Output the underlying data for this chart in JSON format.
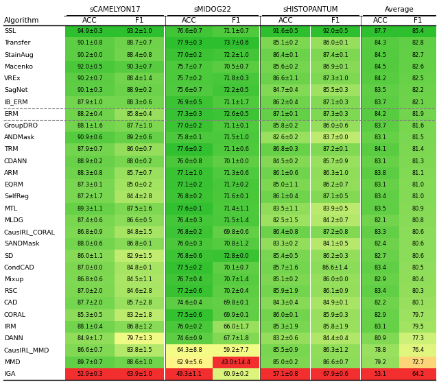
{
  "algorithms": [
    "SSL",
    "Transfer",
    "StainAug",
    "Macenko",
    "VREx",
    "SagNet",
    "IB_ERM",
    "ERM",
    "GroupDRO",
    "ANDMask",
    "TRM",
    "CDANN",
    "ARM",
    "EQRM",
    "SelfReg",
    "MTL",
    "MLDG",
    "CausIRL_CORAL",
    "SANDMask",
    "SD",
    "CondCAD",
    "Mixup",
    "RSC",
    "CAD",
    "CORAL",
    "IRM",
    "DANN",
    "CausIRL_MMD",
    "MMD",
    "IGA"
  ],
  "col_groups": [
    "sCAMELYON17",
    "sMIDOG22",
    "sHISTOPANTUM",
    "Average"
  ],
  "data": [
    [
      "94.9±0.3",
      "93.2±1.0",
      "76.6±0.7",
      "71.1±0.7",
      "91.6±0.5",
      "92.0±0.5",
      "87.7",
      "85.4"
    ],
    [
      "90.1±0.8",
      "88.7±0.7",
      "77.9±0.3",
      "73.7±0.6",
      "85.1±0.2",
      "86.0±0.1",
      "84.3",
      "82.8"
    ],
    [
      "90.2±0.0",
      "88.4±0.8",
      "77.0±0.2",
      "72.2±1.0",
      "86.4±0.1",
      "87.4±0.1",
      "84.5",
      "82.7"
    ],
    [
      "92.0±0.5",
      "90.3±0.7",
      "75.7±0.7",
      "70.5±0.7",
      "85.6±0.2",
      "86.9±0.1",
      "84.5",
      "82.6"
    ],
    [
      "90.2±0.7",
      "88.4±1.4",
      "75.7±0.2",
      "71.8±0.3",
      "86.6±1.1",
      "87.3±1.0",
      "84.2",
      "82.5"
    ],
    [
      "90.1±0.3",
      "88.9±0.2",
      "75.6±0.7",
      "72.2±0.5",
      "84.7±0.4",
      "85.5±0.3",
      "83.5",
      "82.2"
    ],
    [
      "87.9±1.0",
      "88.3±0.6",
      "76.9±0.5",
      "71.1±1.7",
      "86.2±0.4",
      "87.1±0.3",
      "83.7",
      "82.1"
    ],
    [
      "88.2±0.4",
      "85.8±0.4",
      "77.3±0.3",
      "72.6±0.5",
      "87.1±0.1",
      "87.3±0.3",
      "84.2",
      "81.9"
    ],
    [
      "88.1±1.6",
      "87.7±1.0",
      "77.0±0.2",
      "71.1±0.1",
      "85.8±0.2",
      "86.0±0.6",
      "83.7",
      "81.6"
    ],
    [
      "90.9±0.6",
      "89.2±0.6",
      "75.8±0.1",
      "71.5±1.0",
      "82.6±0.2",
      "83.7±0.0",
      "83.1",
      "81.5"
    ],
    [
      "87.9±0.7",
      "86.0±0.7",
      "77.6±0.2",
      "71.1±0.6",
      "86.8±0.3",
      "87.2±0.1",
      "84.1",
      "81.4"
    ],
    [
      "88.9±0.2",
      "88.0±0.2",
      "76.0±0.8",
      "70.1±0.0",
      "84.5±0.2",
      "85.7±0.9",
      "83.1",
      "81.3"
    ],
    [
      "88.3±0.8",
      "85.7±0.7",
      "77.1±1.0",
      "71.3±0.6",
      "86.1±0.6",
      "86.3±1.0",
      "83.8",
      "81.1"
    ],
    [
      "87.3±0.1",
      "85.0±0.2",
      "77.1±0.2",
      "71.7±0.2",
      "85.0±1.1",
      "86.2±0.7",
      "83.1",
      "81.0"
    ],
    [
      "87.2±1.7",
      "84.4±2.8",
      "76.8±0.2",
      "71.6±0.1",
      "86.1±0.4",
      "87.1±0.5",
      "83.4",
      "81.0"
    ],
    [
      "89.3±1.1",
      "87.5±1.6",
      "77.6±0.1",
      "71.4±1.1",
      "83.5±1.1",
      "83.9±0.5",
      "83.5",
      "80.9"
    ],
    [
      "87.4±0.6",
      "86.6±0.5",
      "76.4±0.3",
      "71.5±1.4",
      "82.5±1.5",
      "84.2±0.7",
      "82.1",
      "80.8"
    ],
    [
      "86.8±0.9",
      "84.8±1.5",
      "76.8±0.2",
      "69.8±0.6",
      "86.4±0.8",
      "87.2±0.8",
      "83.3",
      "80.6"
    ],
    [
      "88.0±0.6",
      "86.8±0.1",
      "76.0±0.3",
      "70.8±1.2",
      "83.3±0.2",
      "84.1±0.5",
      "82.4",
      "80.6"
    ],
    [
      "86.0±1.1",
      "82.9±1.5",
      "76.8±0.6",
      "72.8±0.0",
      "85.4±0.5",
      "86.2±0.3",
      "82.7",
      "80.6"
    ],
    [
      "87.0±0.0",
      "84.8±0.1",
      "77.5±0.2",
      "70.1±0.7",
      "85.7±1.6",
      "86.6±1.4",
      "83.4",
      "80.5"
    ],
    [
      "86.8±0.6",
      "84.5±1.1",
      "76.7±0.4",
      "70.7±1.4",
      "85.1±0.2",
      "86.0±0.0",
      "82.9",
      "80.4"
    ],
    [
      "87.0±2.0",
      "84.6±2.8",
      "77.2±0.6",
      "70.2±0.4",
      "85.9±1.9",
      "86.1±0.9",
      "83.4",
      "80.3"
    ],
    [
      "87.7±2.0",
      "85.7±2.8",
      "74.6±0.4",
      "69.8±0.1",
      "84.3±0.4",
      "84.9±0.1",
      "82.2",
      "80.1"
    ],
    [
      "85.3±0.5",
      "83.2±1.8",
      "77.5±0.6",
      "69.9±0.1",
      "86.0±0.1",
      "85.9±0.3",
      "82.9",
      "79.7"
    ],
    [
      "88.1±0.4",
      "86.8±1.2",
      "76.0±0.2",
      "66.0±1.7",
      "85.3±1.9",
      "85.8±1.9",
      "83.1",
      "79.5"
    ],
    [
      "84.9±1.7",
      "79.7±1.3",
      "74.6±0.9",
      "67.7±1.8",
      "83.2±0.6",
      "84.4±0.4",
      "80.9",
      "77.3"
    ],
    [
      "86.6±0.7",
      "83.8±1.5",
      "64.3±8.8",
      "59.2±7.7",
      "85.5±0.9",
      "86.3±1.2",
      "78.8",
      "76.4"
    ],
    [
      "89.7±0.7",
      "88.6±1.0",
      "62.9±5.6",
      "43.0±14.4",
      "85.0±0.2",
      "86.6±0.7",
      "79.2",
      "72.7"
    ],
    [
      "52.9±0.3",
      "63.9±1.0",
      "49.3±1.1",
      "60.9±0.2",
      "57.1±0.8",
      "67.9±0.6",
      "53.1",
      "64.2"
    ]
  ],
  "values": [
    [
      94.9,
      93.2,
      76.6,
      71.1,
      91.6,
      92.0,
      87.7,
      85.4
    ],
    [
      90.1,
      88.7,
      77.9,
      73.7,
      85.1,
      86.0,
      84.3,
      82.8
    ],
    [
      90.2,
      88.4,
      77.0,
      72.2,
      86.4,
      87.4,
      84.5,
      82.7
    ],
    [
      92.0,
      90.3,
      75.7,
      70.5,
      85.6,
      86.9,
      84.5,
      82.6
    ],
    [
      90.2,
      88.4,
      75.7,
      71.8,
      86.6,
      87.3,
      84.2,
      82.5
    ],
    [
      90.1,
      88.9,
      75.6,
      72.2,
      84.7,
      85.5,
      83.5,
      82.2
    ],
    [
      87.9,
      88.3,
      76.9,
      71.1,
      86.2,
      87.1,
      83.7,
      82.1
    ],
    [
      88.2,
      85.8,
      77.3,
      72.6,
      87.1,
      87.3,
      84.2,
      81.9
    ],
    [
      88.1,
      87.7,
      77.0,
      71.1,
      85.8,
      86.0,
      83.7,
      81.6
    ],
    [
      90.9,
      89.2,
      75.8,
      71.5,
      82.6,
      83.7,
      83.1,
      81.5
    ],
    [
      87.9,
      86.0,
      77.6,
      71.1,
      86.8,
      87.2,
      84.1,
      81.4
    ],
    [
      88.9,
      88.0,
      76.0,
      70.1,
      84.5,
      85.7,
      83.1,
      81.3
    ],
    [
      88.3,
      85.7,
      77.1,
      71.3,
      86.1,
      86.3,
      83.8,
      81.1
    ],
    [
      87.3,
      85.0,
      77.1,
      71.7,
      85.0,
      86.2,
      83.1,
      81.0
    ],
    [
      87.2,
      84.4,
      76.8,
      71.6,
      86.1,
      87.1,
      83.4,
      81.0
    ],
    [
      89.3,
      87.5,
      77.6,
      71.4,
      83.5,
      83.9,
      83.5,
      80.9
    ],
    [
      87.4,
      86.6,
      76.4,
      71.5,
      82.5,
      84.2,
      82.1,
      80.8
    ],
    [
      86.8,
      84.8,
      76.8,
      69.8,
      86.4,
      87.2,
      83.3,
      80.6
    ],
    [
      88.0,
      86.8,
      76.0,
      70.8,
      83.3,
      84.1,
      82.4,
      80.6
    ],
    [
      86.0,
      82.9,
      76.8,
      72.8,
      85.4,
      86.2,
      82.7,
      80.6
    ],
    [
      87.0,
      84.8,
      77.5,
      70.1,
      85.7,
      86.6,
      83.4,
      80.5
    ],
    [
      86.8,
      84.5,
      76.7,
      70.7,
      85.1,
      86.0,
      82.9,
      80.4
    ],
    [
      87.0,
      84.6,
      77.2,
      70.2,
      85.9,
      86.1,
      83.4,
      80.3
    ],
    [
      87.7,
      85.7,
      74.6,
      69.8,
      84.3,
      84.9,
      82.2,
      80.1
    ],
    [
      85.3,
      83.2,
      77.5,
      69.9,
      86.0,
      85.9,
      82.9,
      79.7
    ],
    [
      88.1,
      86.8,
      76.0,
      66.0,
      85.3,
      85.8,
      83.1,
      79.5
    ],
    [
      84.9,
      79.7,
      74.6,
      67.7,
      83.2,
      84.4,
      80.9,
      77.3
    ],
    [
      86.6,
      83.8,
      64.3,
      59.2,
      85.5,
      86.3,
      78.8,
      76.4
    ],
    [
      89.7,
      88.6,
      62.9,
      43.0,
      85.0,
      86.6,
      79.2,
      72.7
    ],
    [
      52.9,
      63.9,
      49.3,
      60.9,
      57.1,
      67.9,
      53.1,
      64.2
    ]
  ],
  "col_ranges": [
    [
      52.9,
      94.9
    ],
    [
      63.9,
      93.2
    ],
    [
      49.3,
      77.9
    ],
    [
      43.0,
      73.7
    ],
    [
      57.1,
      91.6
    ],
    [
      67.9,
      92.0
    ],
    [
      53.1,
      87.7
    ],
    [
      64.2,
      85.4
    ]
  ]
}
